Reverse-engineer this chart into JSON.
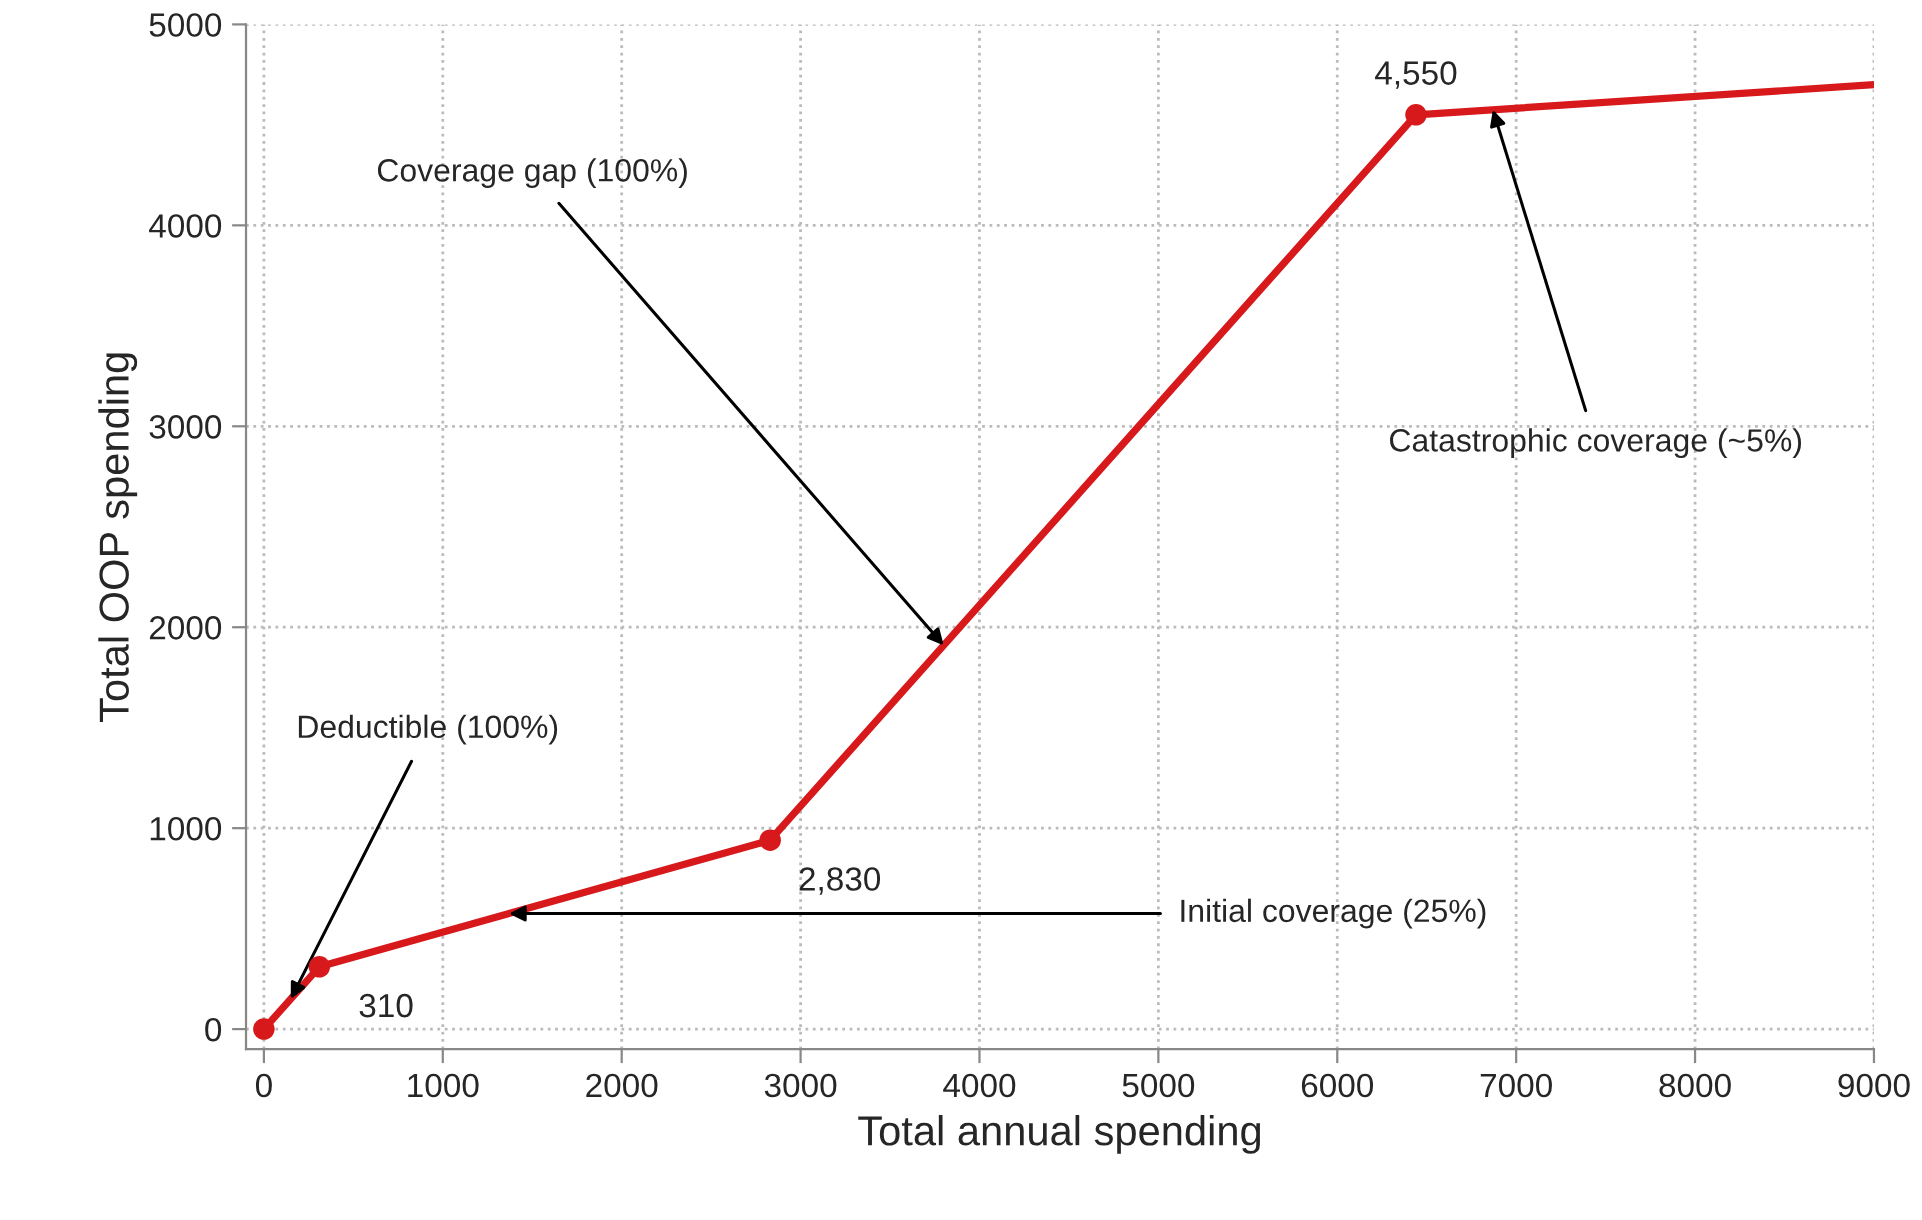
{
  "chart_data": {
    "type": "line",
    "xlabel": "Total annual spending",
    "ylabel": "Total OOP spending",
    "series": [
      {
        "color": "#d7191c",
        "x": [
          0,
          310,
          2830,
          6440,
          9000
        ],
        "values": [
          0,
          310,
          940,
          4550,
          4700
        ],
        "marker": "none"
      },
      {
        "type": "scatter",
        "color": "#d7191c",
        "x": [
          0,
          310,
          2830,
          6440
        ],
        "values": [
          0,
          310,
          940,
          4550
        ],
        "marker": "circle"
      }
    ],
    "xlim": [
      -100,
      9000
    ],
    "ylim": [
      -100,
      5000
    ],
    "xticks": [
      0,
      1000,
      2000,
      3000,
      4000,
      5000,
      6000,
      7000,
      8000,
      9000
    ],
    "yticks": [
      0,
      1000,
      2000,
      3000,
      4000,
      5000
    ],
    "grid": true,
    "annotations": [
      {
        "text": "310",
        "x": 310,
        "y": 310
      },
      {
        "text": "2,830",
        "x": 2830,
        "y": 940
      },
      {
        "text": "4,550",
        "x": 6440,
        "y": 4550
      },
      {
        "text": "Deductible (100%)",
        "x": 150,
        "y": 150
      },
      {
        "text": "Initial coverage (25%)",
        "x": 1370,
        "y": 575
      },
      {
        "text": "Coverage gap (100%)",
        "x": 3800,
        "y": 1910
      },
      {
        "text": "Catastrophic coverage (~5%)",
        "x": 6870,
        "y": 4575
      }
    ]
  }
}
